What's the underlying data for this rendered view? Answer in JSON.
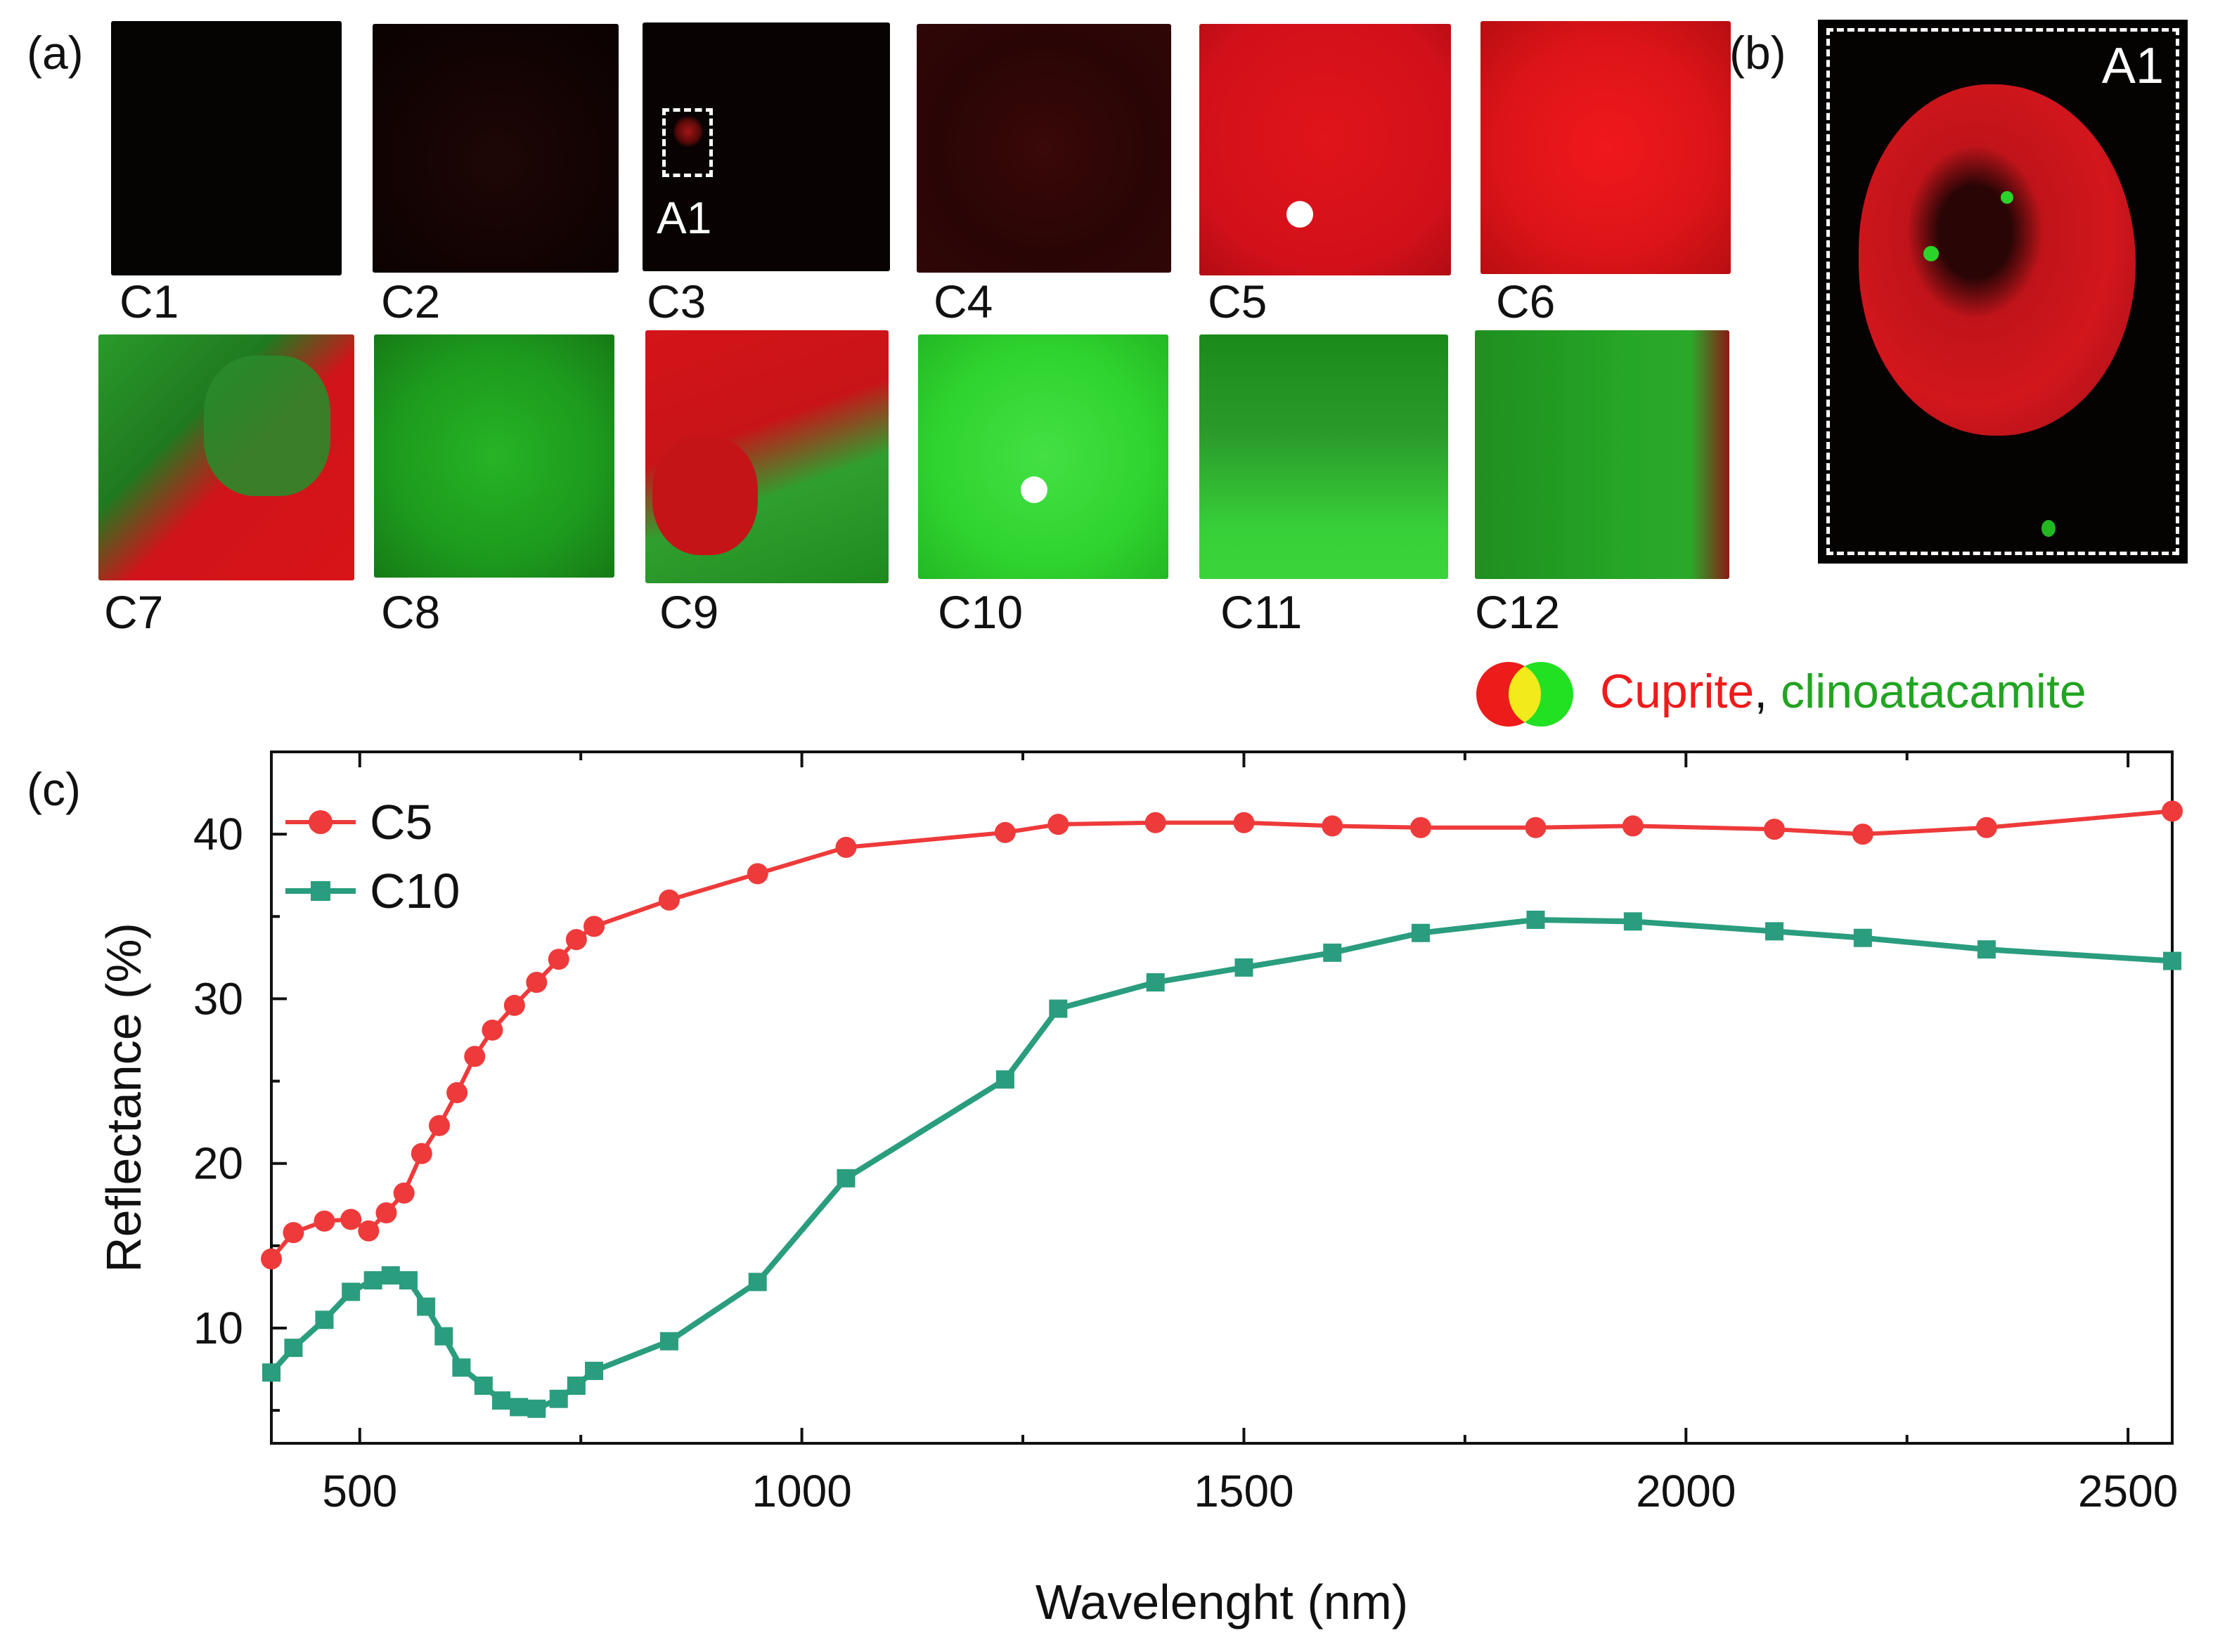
{
  "panel_labels": {
    "a": "(a)",
    "b": "(b)",
    "c": "(c)"
  },
  "tiles": [
    {
      "label": "C1",
      "fill": "black"
    },
    {
      "label": "C2",
      "fill": "black-faint-red"
    },
    {
      "label": "C3",
      "fill": "black-red-spot"
    },
    {
      "label": "C4",
      "fill": "dark-red-speckle"
    },
    {
      "label": "C5",
      "fill": "red"
    },
    {
      "label": "C6",
      "fill": "red"
    },
    {
      "label": "C7",
      "fill": "red-green-mix"
    },
    {
      "label": "C8",
      "fill": "green"
    },
    {
      "label": "C9",
      "fill": "red-green-mix"
    },
    {
      "label": "C10",
      "fill": "bright-green"
    },
    {
      "label": "C11",
      "fill": "green-dark-streaks"
    },
    {
      "label": "C12",
      "fill": "green-red-edge"
    }
  ],
  "inset_label": "A1",
  "zoom_label": "A1",
  "legend": {
    "cuprite": "Cuprite",
    "separator": ",",
    "clinoatacamite": "clinoatacamite",
    "cuprite_color": "#ee1b1b",
    "clinoatacamite_color": "#22c222"
  },
  "colors": {
    "red": "#e8141a",
    "green": "#1ed01e",
    "c5_line": "#ee3a3a",
    "c10_line": "#2a9d7e"
  },
  "chart_data": {
    "type": "line",
    "xlabel": "Wavelenght (nm)",
    "ylabel": "Reflectance (%)",
    "xlim": [
      400,
      2550
    ],
    "ylim": [
      3,
      45
    ],
    "xticks": [
      500,
      1000,
      1500,
      2000,
      2500
    ],
    "yticks": [
      10,
      20,
      30,
      40
    ],
    "series": [
      {
        "name": "C5",
        "marker": "circle",
        "color": "#ee3a3a",
        "x": [
          400,
          425,
          460,
          490,
          510,
          530,
          550,
          570,
          590,
          610,
          630,
          650,
          675,
          700,
          725,
          745,
          765,
          850,
          950,
          1050,
          1230,
          1290,
          1400,
          1500,
          1600,
          1700,
          1830,
          1940,
          2100,
          2200,
          2340,
          2550
        ],
        "y": [
          14.2,
          15.8,
          16.5,
          16.6,
          15.9,
          17.0,
          18.2,
          20.6,
          22.3,
          24.3,
          26.5,
          28.1,
          29.6,
          31.0,
          32.4,
          33.6,
          34.4,
          36.0,
          37.6,
          39.2,
          40.1,
          40.6,
          40.7,
          40.7,
          40.5,
          40.4,
          40.4,
          40.5,
          40.3,
          40.0,
          40.4,
          41.4
        ]
      },
      {
        "name": "C10",
        "marker": "square",
        "color": "#2a9d7e",
        "x": [
          400,
          425,
          460,
          490,
          515,
          535,
          555,
          575,
          595,
          615,
          640,
          660,
          680,
          700,
          725,
          745,
          765,
          850,
          950,
          1050,
          1230,
          1290,
          1400,
          1500,
          1600,
          1700,
          1830,
          1940,
          2100,
          2200,
          2340,
          2550
        ],
        "y": [
          7.3,
          8.8,
          10.5,
          12.2,
          12.9,
          13.2,
          12.9,
          11.3,
          9.5,
          7.6,
          6.5,
          5.6,
          5.2,
          5.1,
          5.7,
          6.5,
          7.4,
          9.2,
          12.8,
          19.1,
          25.1,
          29.4,
          31.0,
          31.9,
          32.8,
          34.0,
          34.8,
          34.7,
          34.1,
          33.7,
          33.0,
          32.3
        ]
      }
    ],
    "legend_position": "top-left",
    "grid": false
  }
}
